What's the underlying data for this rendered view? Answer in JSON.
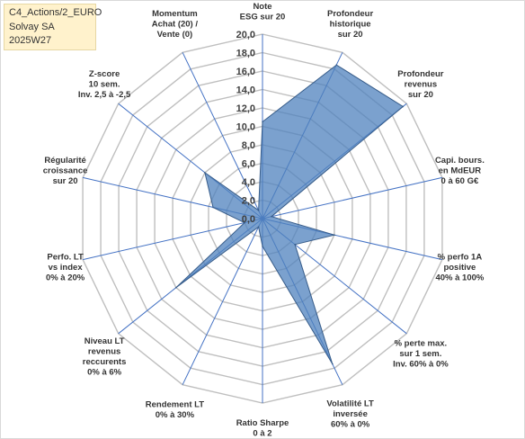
{
  "info_box": {
    "line1": "C4_Actions/2_EURO",
    "line2": "Solvay SA",
    "line3": "2025W27"
  },
  "colors": {
    "fill": "#4f81bd",
    "fill_opacity": 0.75,
    "outline": "#385d8a",
    "grid": "#bfbfbf",
    "spoke": "#4472c4",
    "label_box_bg": "#fff2cc"
  },
  "chart_data": {
    "type": "radar",
    "grid": true,
    "rmax": 20,
    "ticks": [
      "0,0",
      "2,0",
      "4,0",
      "6,0",
      "8,0",
      "10,0",
      "12,0",
      "14,0",
      "16,0",
      "18,0",
      "20,0"
    ],
    "categories": [
      [
        "Note",
        "ESG sur 20"
      ],
      [
        "Profondeur",
        "historique",
        "sur 20"
      ],
      [
        "Profondeur",
        "revenus",
        "sur 20"
      ],
      [
        "Capi. bours.",
        "en MdEUR",
        "0 à 60 G€"
      ],
      [
        "% perfo 1A",
        "positive",
        "40% à 100%"
      ],
      [
        "% perte max.",
        "sur 1 sem.",
        "Inv. 60% à 0%"
      ],
      [
        "Volatilité LT",
        "inversée",
        "60% à 0%"
      ],
      [
        "Ratio Sharpe",
        "0 à 2"
      ],
      [
        "Rendement LT",
        "0% à 30%"
      ],
      [
        "Niveau LT",
        "revenus",
        "reccurents",
        "0% à 6%"
      ],
      [
        "Perfo. LT",
        "vs index",
        "0% à 20%"
      ],
      [
        "Régularité",
        "croissance",
        "sur 20"
      ],
      [
        "Z-score",
        "10 sem.",
        "Inv. 2,5 à -2,5"
      ],
      [
        "Momentum",
        "Achat (20) /",
        "Vente (0)"
      ]
    ],
    "series": [
      {
        "values": [
          10.5,
          18.5,
          19.5,
          1.0,
          8.0,
          4.5,
          17.5,
          3.0,
          1.0,
          12.0,
          2.0,
          5.5,
          8.0,
          1.0
        ]
      }
    ]
  }
}
